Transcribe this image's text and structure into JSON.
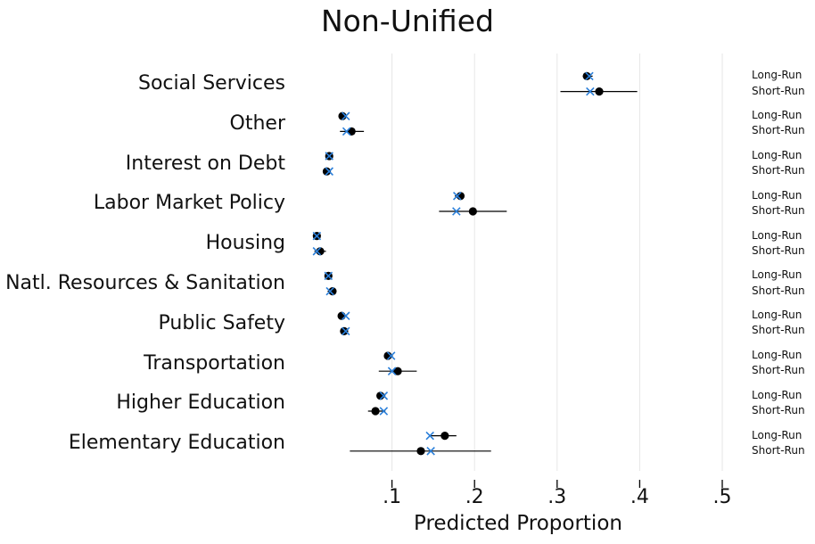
{
  "chart_data": {
    "type": "scatter",
    "title": "Non-Unified",
    "xlabel": "Predicted Proportion",
    "xlim": [
      0,
      0.5
    ],
    "xticks": [
      {
        "value": 0.1,
        "label": ".1"
      },
      {
        "value": 0.2,
        "label": ".2"
      },
      {
        "value": 0.3,
        "label": ".3"
      },
      {
        "value": 0.4,
        "label": ".4"
      },
      {
        "value": 0.5,
        "label": ".5"
      }
    ],
    "grid": true,
    "colors": {
      "estimate_dot": "#000000",
      "estimate_cross": "#2b7fd9",
      "grid": "#e6e6e6",
      "ci": "#000000"
    },
    "run_labels": {
      "long": "Long-Run",
      "short": "Short-Run"
    },
    "categories": [
      {
        "name": "Social Services",
        "long": {
          "dot": 0.336,
          "cross": 0.339,
          "lo": 0.331,
          "hi": 0.343
        },
        "short": {
          "dot": 0.351,
          "cross": 0.34,
          "lo": 0.304,
          "hi": 0.397
        }
      },
      {
        "name": "Other",
        "long": {
          "dot": 0.04,
          "cross": 0.044,
          "lo": 0.037,
          "hi": 0.045
        },
        "short": {
          "dot": 0.051,
          "cross": 0.045,
          "lo": 0.037,
          "hi": 0.066
        }
      },
      {
        "name": "Interest on Debt",
        "long": {
          "dot": 0.024,
          "cross": 0.024,
          "lo": 0.022,
          "hi": 0.026
        },
        "short": {
          "dot": 0.021,
          "cross": 0.024,
          "lo": 0.018,
          "hi": 0.026
        }
      },
      {
        "name": "Labor Market Policy",
        "long": {
          "dot": 0.183,
          "cross": 0.179,
          "lo": 0.176,
          "hi": 0.186
        },
        "short": {
          "dot": 0.198,
          "cross": 0.178,
          "lo": 0.157,
          "hi": 0.239
        }
      },
      {
        "name": "Housing",
        "long": {
          "dot": 0.009,
          "cross": 0.009,
          "lo": 0.007,
          "hi": 0.011
        },
        "short": {
          "dot": 0.013,
          "cross": 0.009,
          "lo": 0.006,
          "hi": 0.02
        }
      },
      {
        "name": "Natl. Resources & Sanitation",
        "long": {
          "dot": 0.023,
          "cross": 0.023,
          "lo": 0.021,
          "hi": 0.025
        },
        "short": {
          "dot": 0.028,
          "cross": 0.025,
          "lo": 0.022,
          "hi": 0.032
        }
      },
      {
        "name": "Public Safety",
        "long": {
          "dot": 0.039,
          "cross": 0.044,
          "lo": 0.037,
          "hi": 0.045
        },
        "short": {
          "dot": 0.042,
          "cross": 0.044,
          "lo": 0.038,
          "hi": 0.047
        }
      },
      {
        "name": "Transportation",
        "long": {
          "dot": 0.095,
          "cross": 0.099,
          "lo": 0.092,
          "hi": 0.101
        },
        "short": {
          "dot": 0.107,
          "cross": 0.1,
          "lo": 0.084,
          "hi": 0.13
        }
      },
      {
        "name": "Higher Education",
        "long": {
          "dot": 0.086,
          "cross": 0.09,
          "lo": 0.084,
          "hi": 0.092
        },
        "short": {
          "dot": 0.08,
          "cross": 0.09,
          "lo": 0.071,
          "hi": 0.092
        }
      },
      {
        "name": "Elementary Education",
        "long": {
          "dot": 0.164,
          "cross": 0.146,
          "lo": 0.146,
          "hi": 0.178
        },
        "short": {
          "dot": 0.135,
          "cross": 0.147,
          "lo": 0.049,
          "hi": 0.22
        }
      }
    ]
  }
}
